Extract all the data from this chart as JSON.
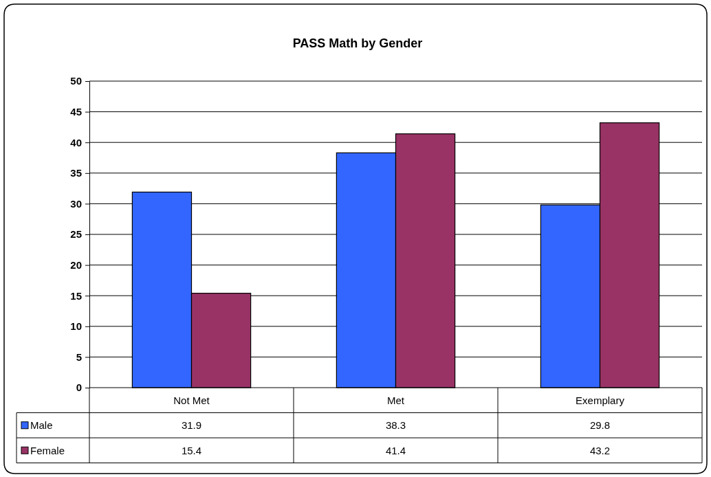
{
  "chart_data": {
    "type": "bar",
    "title": "PASS Math by Gender",
    "categories": [
      "Not Met",
      "Met",
      "Exemplary"
    ],
    "series": [
      {
        "name": "Male",
        "color": "#3366ff",
        "values": [
          31.9,
          38.3,
          29.8
        ]
      },
      {
        "name": "Female",
        "color": "#993366",
        "values": [
          15.4,
          41.4,
          43.2
        ]
      }
    ],
    "ylim": [
      0,
      50
    ],
    "yticks": [
      0,
      5,
      10,
      15,
      20,
      25,
      30,
      35,
      40,
      45,
      50
    ],
    "grid": "y",
    "legend": "bottom",
    "data_labels": true
  }
}
